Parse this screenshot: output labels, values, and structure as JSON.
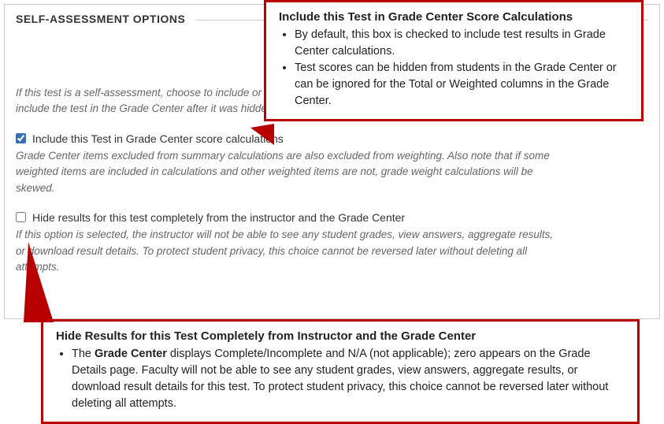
{
  "panel": {
    "title": "SELF-ASSESSMENT OPTIONS",
    "intro": "If this test is a self-assessment, choose to include or hide the scores in the Grade Center. NOTE: If an instructor decides to include the test in the Grade Center after it was hidden, all prior attempts will be deleted."
  },
  "option1": {
    "checked": true,
    "label": "Include this Test in Grade Center score calculations",
    "help": "Grade Center items excluded from summary calculations are also excluded from weighting. Also note that if some weighted items are included in calculations and other weighted items are not, grade weight calculations will be skewed."
  },
  "option2": {
    "checked": false,
    "label": "Hide results for this test completely from the instructor and the Grade Center",
    "help": "If this option is selected, the instructor will not be able to see any student grades, view answers, aggregate results, or download result details. To protect student privacy, this choice cannot be reversed later without deleting all attempts."
  },
  "calloutTop": {
    "title": "Include this Test in Grade Center Score Calculations",
    "bullets": [
      "By default, this box is checked to include test results in Grade Center calculations.",
      "Test scores can be hidden from students in the Grade Center or can be ignored for the Total or Weighted columns in the Grade Center."
    ]
  },
  "calloutBottom": {
    "title": "Hide Results for this Test Completely from Instructor and the Grade Center",
    "body_prefix": "The ",
    "body_bold": "Grade Center",
    "body_suffix": " displays Complete/Incomplete and N/A (not applicable); zero appears on the Grade Details page. Faculty will not be able to see any student grades, view answers, aggregate results, or download result details for this test. To protect student privacy, this choice cannot be reversed later without deleting all attempts."
  },
  "colors": {
    "callout_border": "#b80000",
    "panel_border": "#cccccc",
    "text": "#333333",
    "muted": "#666666"
  }
}
